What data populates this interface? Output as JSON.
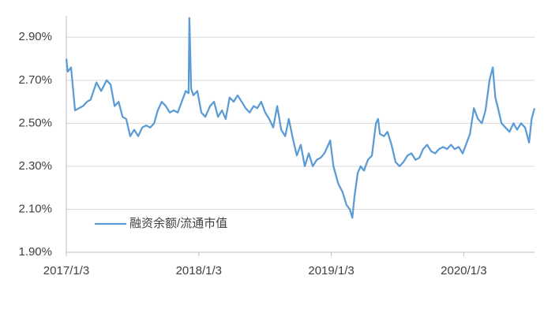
{
  "chart_data": {
    "type": "line",
    "x": [
      "2017-01-03",
      "2017-01-07",
      "2017-01-16",
      "2017-01-27",
      "2017-02-07",
      "2017-02-18",
      "2017-03-01",
      "2017-03-11",
      "2017-03-27",
      "2017-04-09",
      "2017-04-24",
      "2017-05-05",
      "2017-05-16",
      "2017-05-27",
      "2017-06-07",
      "2017-06-17",
      "2017-06-28",
      "2017-07-09",
      "2017-07-20",
      "2017-07-31",
      "2017-08-11",
      "2017-08-22",
      "2017-09-02",
      "2017-09-12",
      "2017-09-23",
      "2017-10-04",
      "2017-10-15",
      "2017-10-26",
      "2017-11-06",
      "2017-11-17",
      "2017-11-28",
      "2017-12-06",
      "2017-12-08",
      "2017-12-13",
      "2017-12-19",
      "2017-12-30",
      "2018-01-10",
      "2018-01-21",
      "2018-02-03",
      "2018-02-14",
      "2018-02-25",
      "2018-03-08",
      "2018-03-18",
      "2018-03-29",
      "2018-04-09",
      "2018-04-20",
      "2018-05-01",
      "2018-05-12",
      "2018-05-23",
      "2018-06-03",
      "2018-06-13",
      "2018-06-24",
      "2018-07-05",
      "2018-07-16",
      "2018-07-27",
      "2018-08-07",
      "2018-08-18",
      "2018-08-29",
      "2018-09-08",
      "2018-09-19",
      "2018-09-30",
      "2018-10-11",
      "2018-10-22",
      "2018-11-02",
      "2018-11-13",
      "2018-11-24",
      "2018-12-05",
      "2018-12-15",
      "2018-12-26",
      "2018-12-31",
      "2019-01-09",
      "2019-01-22",
      "2019-02-03",
      "2019-02-14",
      "2019-02-23",
      "2019-03-02",
      "2019-03-08",
      "2019-03-17",
      "2019-03-25",
      "2019-04-03",
      "2019-04-14",
      "2019-04-25",
      "2019-05-06",
      "2019-05-12",
      "2019-05-17",
      "2019-05-28",
      "2019-06-07",
      "2019-06-18",
      "2019-06-29",
      "2019-07-10",
      "2019-07-21",
      "2019-08-01",
      "2019-08-12",
      "2019-08-23",
      "2019-09-03",
      "2019-09-13",
      "2019-09-24",
      "2019-10-05",
      "2019-10-16",
      "2019-10-27",
      "2019-11-07",
      "2019-11-18",
      "2019-11-29",
      "2019-12-09",
      "2019-12-20",
      "2019-12-31",
      "2020-01-09",
      "2020-01-20",
      "2020-01-31",
      "2020-02-11",
      "2020-02-22",
      "2020-03-03",
      "2020-03-14",
      "2020-03-23",
      "2020-03-30",
      "2020-04-05",
      "2020-04-16",
      "2020-04-27",
      "2020-05-08",
      "2020-05-19",
      "2020-05-29",
      "2020-06-09",
      "2020-06-20",
      "2020-07-01",
      "2020-07-08",
      "2020-07-16"
    ],
    "series": [
      {
        "name": "融资余额/流通市值",
        "color": "#5b9bd5",
        "values": [
          2.8,
          2.74,
          2.76,
          2.56,
          2.57,
          2.58,
          2.6,
          2.61,
          2.69,
          2.65,
          2.7,
          2.68,
          2.58,
          2.6,
          2.53,
          2.52,
          2.44,
          2.47,
          2.44,
          2.48,
          2.49,
          2.48,
          2.5,
          2.56,
          2.6,
          2.58,
          2.55,
          2.56,
          2.55,
          2.6,
          2.65,
          2.64,
          2.99,
          2.66,
          2.63,
          2.65,
          2.55,
          2.53,
          2.58,
          2.6,
          2.53,
          2.56,
          2.52,
          2.62,
          2.6,
          2.63,
          2.6,
          2.57,
          2.55,
          2.58,
          2.57,
          2.6,
          2.55,
          2.52,
          2.48,
          2.58,
          2.47,
          2.44,
          2.52,
          2.43,
          2.35,
          2.4,
          2.3,
          2.36,
          2.3,
          2.33,
          2.34,
          2.36,
          2.4,
          2.42,
          2.3,
          2.22,
          2.18,
          2.12,
          2.1,
          2.06,
          2.16,
          2.27,
          2.3,
          2.28,
          2.33,
          2.35,
          2.5,
          2.52,
          2.45,
          2.44,
          2.46,
          2.4,
          2.32,
          2.3,
          2.32,
          2.35,
          2.36,
          2.33,
          2.34,
          2.38,
          2.4,
          2.37,
          2.36,
          2.38,
          2.39,
          2.38,
          2.4,
          2.38,
          2.39,
          2.36,
          2.4,
          2.45,
          2.57,
          2.52,
          2.5,
          2.56,
          2.7,
          2.76,
          2.62,
          2.58,
          2.5,
          2.48,
          2.46,
          2.5,
          2.47,
          2.5,
          2.48,
          2.41,
          2.52,
          2.57
        ]
      }
    ],
    "xlim": [
      "2017-01-03",
      "2020-07-16"
    ],
    "xticks": [
      {
        "value": "2017-01-03",
        "label": "2017/1/3"
      },
      {
        "value": "2018-01-03",
        "label": "2018/1/3"
      },
      {
        "value": "2019-01-03",
        "label": "2019/1/3"
      },
      {
        "value": "2020-01-03",
        "label": "2020/1/3"
      }
    ],
    "ylim": [
      1.9,
      3.0
    ],
    "yticks": [
      {
        "value": 1.9,
        "label": "1.90%"
      },
      {
        "value": 2.1,
        "label": "2.10%"
      },
      {
        "value": 2.3,
        "label": "2.30%"
      },
      {
        "value": 2.5,
        "label": "2.50%"
      },
      {
        "value": 2.7,
        "label": "2.70%"
      },
      {
        "value": 2.9,
        "label": "2.90%"
      }
    ],
    "grid": true,
    "legend": "lower-left"
  }
}
